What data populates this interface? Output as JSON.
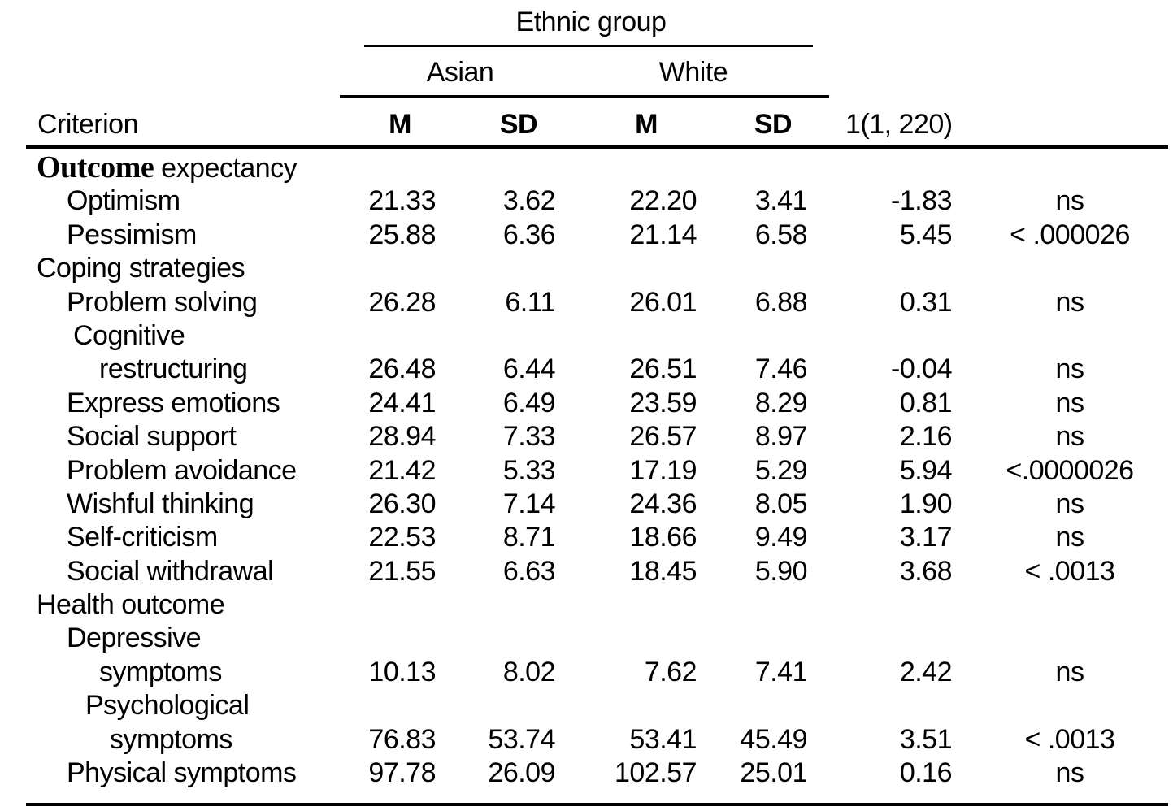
{
  "table": {
    "spanner": "Ethnic group",
    "group_columns": [
      "Asian",
      "White"
    ],
    "criterion_label": "Criterion",
    "stat_headers": [
      "M",
      "SD",
      "M",
      "SD"
    ],
    "f_header": "1(1, 220)",
    "significance_note_values": [
      "ns",
      "< .000026",
      "<.0000026",
      "< .0013"
    ],
    "rows": [
      {
        "bold_prefix": "Outcome",
        "label": " expectancy",
        "indent": 0,
        "cells": null
      },
      {
        "label": "Optimism",
        "indent": 1,
        "cells": [
          "21.33",
          "3.62",
          "22.20",
          "3.41",
          "-1.83",
          "ns"
        ]
      },
      {
        "label": "Pessimism",
        "indent": 1,
        "cells": [
          "25.88",
          "6.36",
          "21.14",
          "6.58",
          "5.45",
          "< .000026"
        ]
      },
      {
        "label": "Coping strategies",
        "indent": 0,
        "cells": null
      },
      {
        "label": "Problem solving",
        "indent": 1,
        "cells": [
          "26.28",
          "6.11",
          "26.01",
          "6.88",
          "0.31",
          "ns"
        ]
      },
      {
        "label": "Cognitive",
        "indent": 1.1,
        "cells": null
      },
      {
        "label": "restructuring",
        "indent": 2,
        "cells": [
          "26.48",
          "6.44",
          "26.51",
          "7.46",
          "-0.04",
          "ns"
        ]
      },
      {
        "label": "Express emotions",
        "indent": 1,
        "cells": [
          "24.41",
          "6.49",
          "23.59",
          "8.29",
          "0.81",
          "ns"
        ]
      },
      {
        "label": "Social support",
        "indent": 1,
        "cells": [
          "28.94",
          "7.33",
          "26.57",
          "8.97",
          "2.16",
          "ns"
        ]
      },
      {
        "label": "Problem avoidance",
        "indent": 1,
        "cells": [
          "21.42",
          "5.33",
          "17.19",
          "5.29",
          "5.94",
          "<.0000026"
        ]
      },
      {
        "label": "Wishful thinking",
        "indent": 1,
        "cells": [
          "26.30",
          "7.14",
          "24.36",
          "8.05",
          "1.90",
          "ns"
        ]
      },
      {
        "label": "Self-criticism",
        "indent": 1,
        "cells": [
          "22.53",
          "8.71",
          "18.66",
          "9.49",
          "3.17",
          "ns"
        ]
      },
      {
        "label": "Social withdrawal",
        "indent": 1,
        "cells": [
          "21.55",
          "6.63",
          "18.45",
          "5.90",
          "3.68",
          "< .0013"
        ]
      },
      {
        "label": "Health outcome",
        "indent": 0,
        "cells": null
      },
      {
        "label": "Depressive",
        "indent": 1,
        "cells": null
      },
      {
        "label": "symptoms",
        "indent": 2,
        "cells": [
          "10.13",
          "8.02",
          "7.62",
          "7.41",
          "2.42",
          "ns"
        ]
      },
      {
        "label": "Psychological",
        "indent": 1.5,
        "cells": null
      },
      {
        "label": "symptoms",
        "indent": 2.2,
        "cells": [
          "76.83",
          "53.74",
          "53.41",
          "45.49",
          "3.51",
          "< .0013"
        ]
      },
      {
        "label": "Physical symptoms",
        "indent": 1,
        "cells": [
          "97.78",
          "26.09",
          "102.57",
          "25.01",
          "0.16",
          "ns"
        ]
      }
    ]
  }
}
